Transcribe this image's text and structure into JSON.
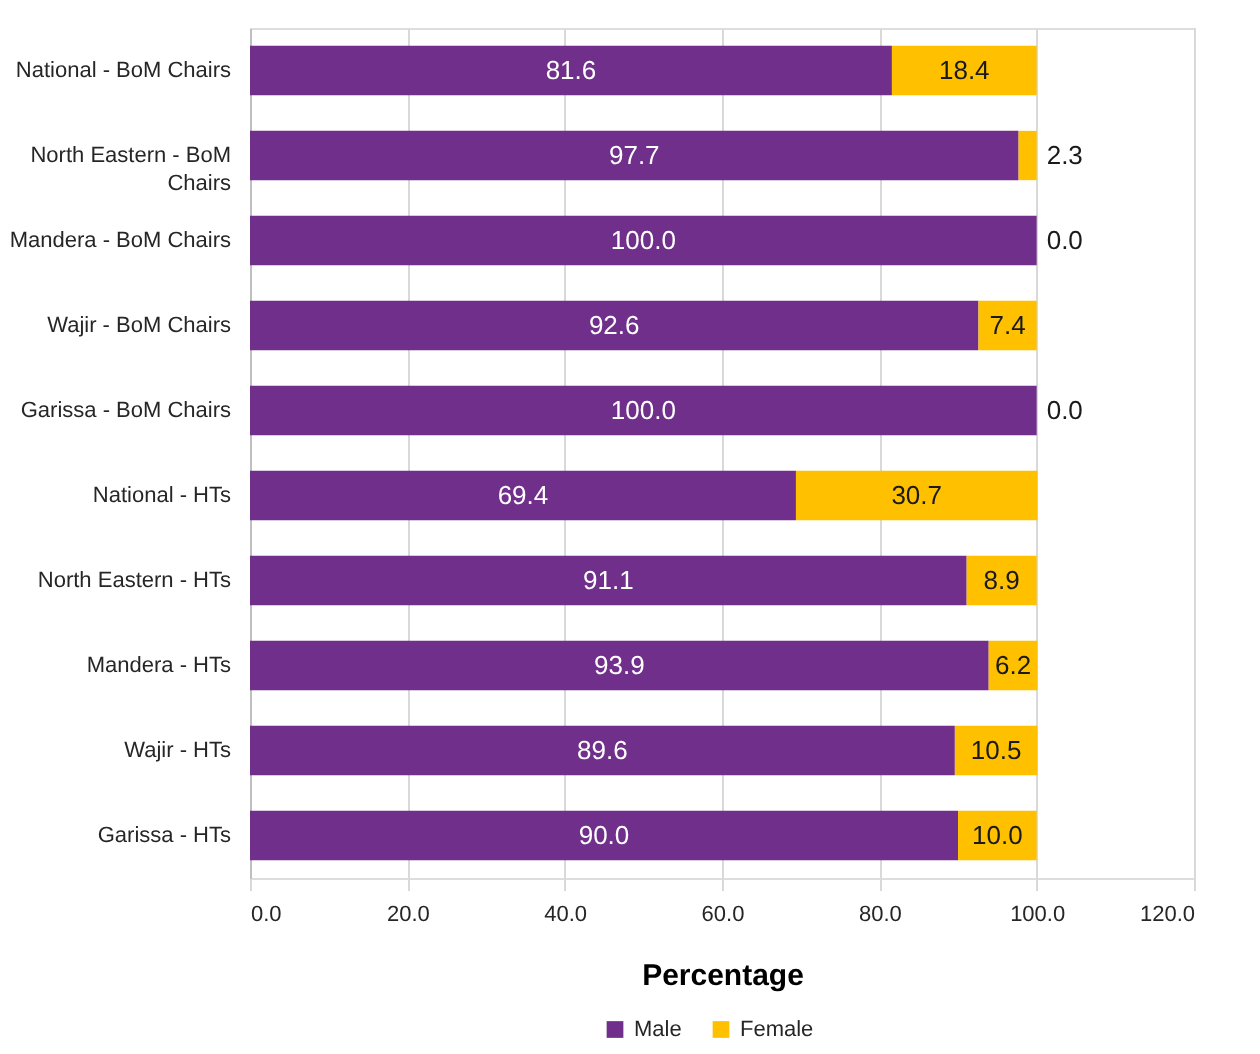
{
  "chart_data": {
    "type": "bar",
    "orientation": "horizontal",
    "stacked": true,
    "categories": [
      "National - BoM Chairs",
      "North Eastern - BoM Chairs",
      "Mandera - BoM Chairs",
      "Wajir - BoM Chairs",
      "Garissa - BoM Chairs",
      "National  - HTs",
      "North Eastern - HTs",
      "Mandera  - HTs",
      "Wajir  - HTs",
      "Garissa  - HTs"
    ],
    "series": [
      {
        "name": "Male",
        "color": "#702f8a",
        "values": [
          81.6,
          97.7,
          100.0,
          92.6,
          100.0,
          69.4,
          91.1,
          93.9,
          89.6,
          90.0
        ],
        "value_labels": [
          "81.6",
          "97.7",
          "100.0",
          "92.6",
          "100.0",
          "69.4",
          "91.1",
          "93.9",
          "89.6",
          "90.0"
        ]
      },
      {
        "name": "Female",
        "color": "#ffc000",
        "values": [
          18.4,
          2.3,
          0.0,
          7.4,
          0.0,
          30.7,
          8.9,
          6.2,
          10.5,
          10.0
        ],
        "value_labels": [
          "18.4",
          "2.3",
          "0.0",
          "7.4",
          "0.0",
          "30.7",
          "8.9",
          "6.2",
          "10.5",
          "10.0"
        ]
      }
    ],
    "xlim": [
      0,
      120
    ],
    "xticks": [
      {
        "value": 0,
        "label": "0.0"
      },
      {
        "value": 20,
        "label": "20.0"
      },
      {
        "value": 40,
        "label": "40.0"
      },
      {
        "value": 60,
        "label": "60.0"
      },
      {
        "value": 80,
        "label": "80.0"
      },
      {
        "value": 100,
        "label": "100.0"
      },
      {
        "value": 120,
        "label": "120.0"
      }
    ],
    "xlabel": "Percentage",
    "grid": "x",
    "legend": "bottom"
  }
}
